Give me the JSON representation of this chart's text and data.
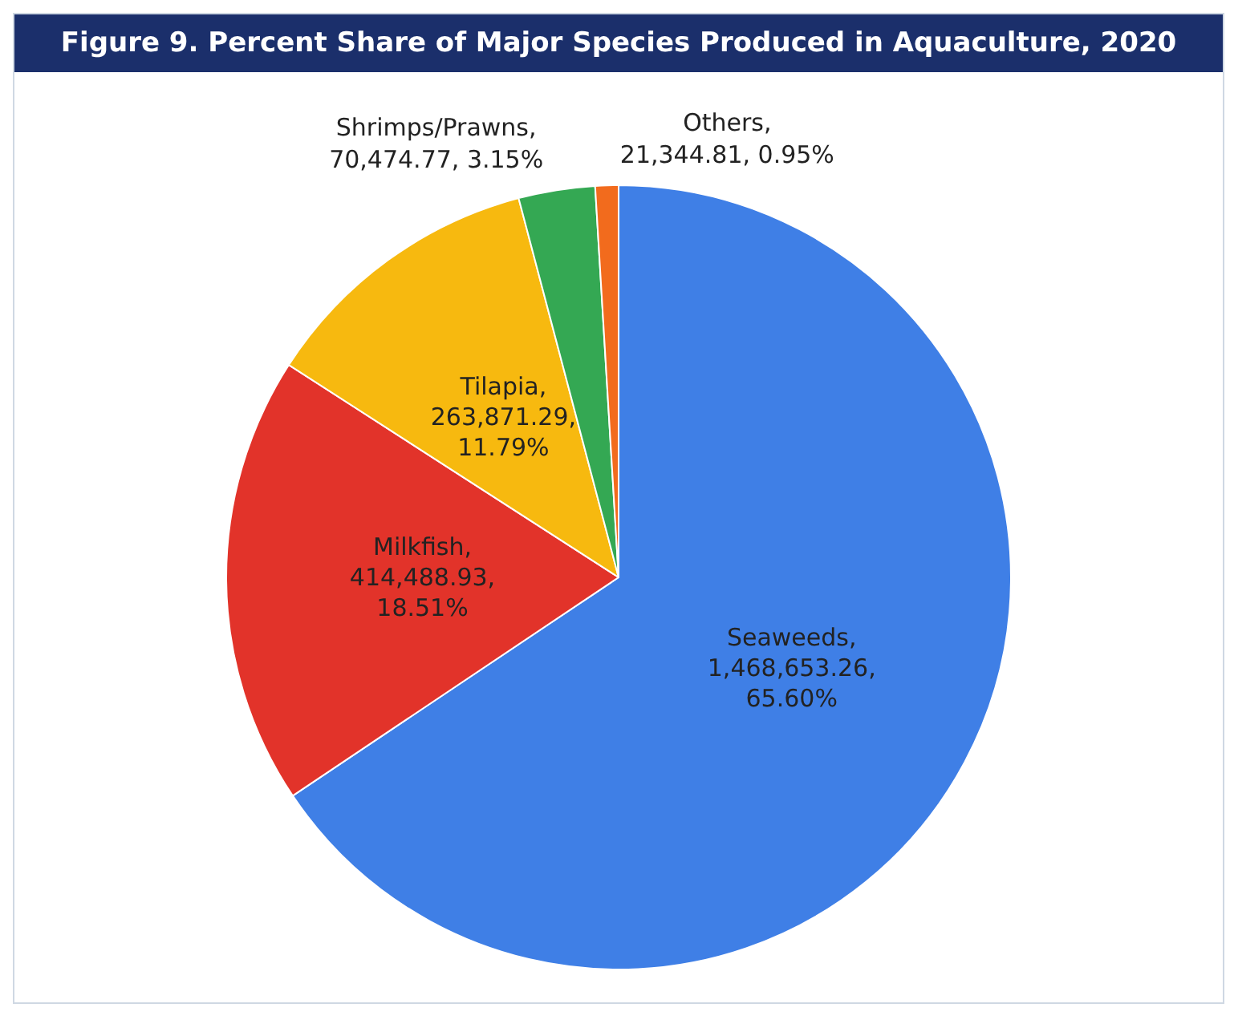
{
  "chart_data": {
    "type": "pie",
    "title": "Figure 9. Percent Share of Major Species Produced in Aquaculture, 2020",
    "categories": [
      "Seaweeds",
      "Milkfish",
      "Tilapia",
      "Shrimps/Prawns",
      "Others"
    ],
    "values": [
      1468653.26,
      414488.93,
      263871.29,
      70474.77,
      21344.81
    ],
    "value_labels": [
      ",\n1,468,653.26,\n65.60%",
      ",\n414,488.93,\n18.51%",
      ",\n263,871.29,\n11.79%",
      ",\n70,474.77, 3.15%",
      ",\n21,344.81, 0.95%"
    ],
    "colors": [
      "#3f7fe6",
      "#e2332a",
      "#f7b90f",
      "#34a853",
      "#f26b1d"
    ],
    "legend": false
  }
}
